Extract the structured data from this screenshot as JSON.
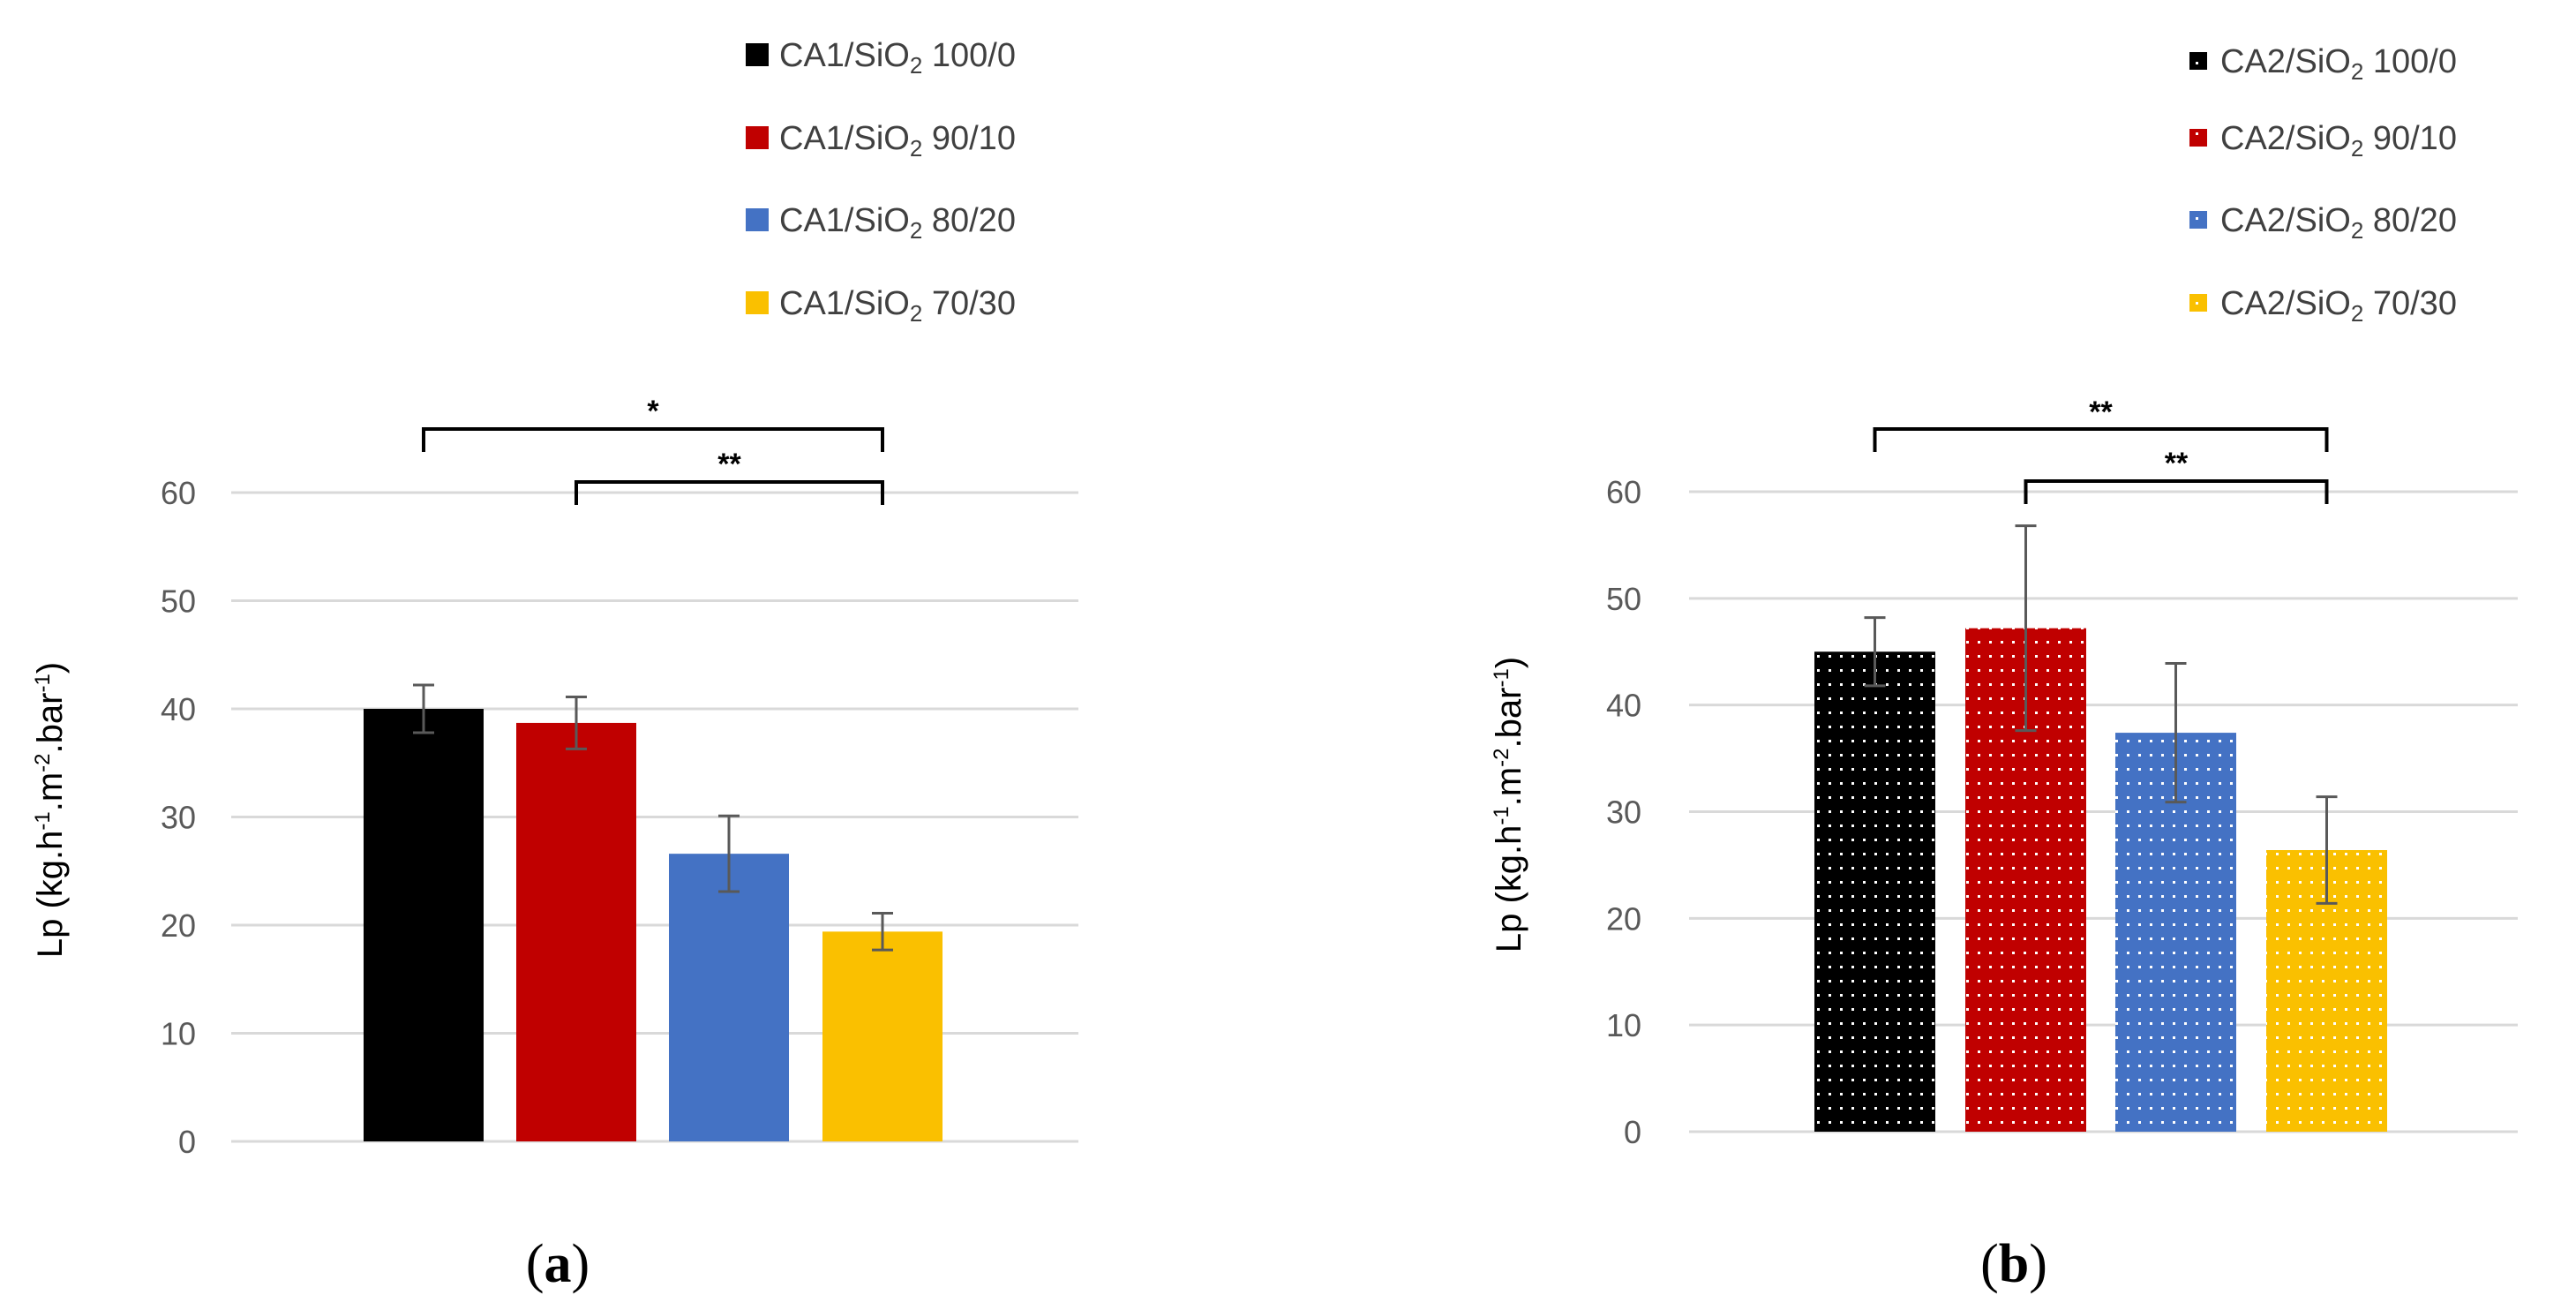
{
  "colors": {
    "black": "#000000",
    "red": "#c00000",
    "blue": "#4472c4",
    "yellow": "#fac000",
    "grid": "#d9d9d9",
    "error": "#595959"
  },
  "chart_data": [
    {
      "type": "bar",
      "panel_label": "a",
      "ylabel": "Lp (kg.h⁻¹.m⁻².bar⁻¹)",
      "ylim": [
        0,
        60
      ],
      "yticks": [
        0,
        10,
        20,
        30,
        40,
        50,
        60
      ],
      "grid": true,
      "pattern": "solid",
      "legend_position": "top",
      "series": [
        {
          "name": "CA1/SiO₂ 100/0",
          "value": 40.0,
          "error": 2.2,
          "color": "#000000"
        },
        {
          "name": "CA1/SiO₂ 90/10",
          "value": 38.7,
          "error": 2.4,
          "color": "#c00000"
        },
        {
          "name": "CA1/SiO₂ 80/20",
          "value": 26.6,
          "error": 3.5,
          "color": "#4472c4"
        },
        {
          "name": "CA1/SiO₂ 70/30",
          "value": 19.4,
          "error": 1.7,
          "color": "#fac000"
        }
      ],
      "significance": [
        {
          "from": 0,
          "to": 3,
          "label": "*"
        },
        {
          "from": 1,
          "to": 3,
          "label": "**"
        }
      ]
    },
    {
      "type": "bar",
      "panel_label": "b",
      "ylabel": "Lp (kg.h⁻¹.m⁻².bar⁻¹)",
      "ylim": [
        0,
        60
      ],
      "yticks": [
        0,
        10,
        20,
        30,
        40,
        50,
        60
      ],
      "grid": true,
      "pattern": "dotted",
      "legend_position": "top",
      "series": [
        {
          "name": "CA2/SiO₂ 100/0",
          "value": 45.0,
          "error": 3.2,
          "color": "#000000"
        },
        {
          "name": "CA2/SiO₂ 90/10",
          "value": 47.2,
          "error": 9.6,
          "color": "#c00000"
        },
        {
          "name": "CA2/SiO₂ 80/20",
          "value": 37.4,
          "error": 6.5,
          "color": "#4472c4"
        },
        {
          "name": "CA2/SiO₂ 70/30",
          "value": 26.4,
          "error": 5.0,
          "color": "#fac000"
        }
      ],
      "significance": [
        {
          "from": 0,
          "to": 3,
          "label": "**"
        },
        {
          "from": 1,
          "to": 3,
          "label": "**"
        }
      ]
    }
  ]
}
